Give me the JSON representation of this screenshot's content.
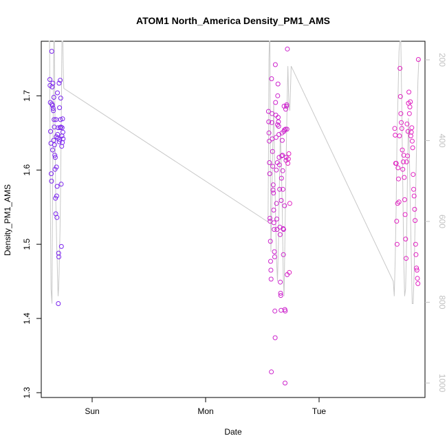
{
  "chart_data": {
    "type": "scatter",
    "title": "ATOM1 North_America Density_PM1_AMS",
    "xlabel": "Date",
    "ylabel": "Density_PM1_AMS",
    "x_ticks": [
      "Sun",
      "Mon",
      "Tue"
    ],
    "y_ticks": [
      "1.3",
      "1.4",
      "1.5",
      "1.6",
      "1.7"
    ],
    "y_ticks_right": [
      "200",
      "400",
      "600",
      "800",
      "1000"
    ],
    "xlim_days": [
      -0.4,
      2.93
    ],
    "ylim": [
      1.3,
      1.78
    ],
    "ylim_right": [
      1000,
      172
    ],
    "grid": false,
    "colors": {
      "cluster1": "#7a22ee",
      "cluster2": "#cc22cc",
      "cluster3": "#e020c0",
      "line": "#c8c8c8",
      "frame": "#000000",
      "right_axis": "#c0c0c0"
    },
    "series": [
      {
        "type": "scatter",
        "x_hours": [
          -8.95,
          -8.9,
          -8.85,
          -8.8,
          -8.72,
          -8.65,
          -8.6,
          -8.55,
          -8.5,
          -8.45,
          -8.4,
          -8.35,
          -8.3,
          -8.25,
          -8.2,
          -8.15,
          -8.1,
          -8.05,
          -8.0,
          -7.95,
          -7.9,
          -7.85,
          -7.8,
          -7.75,
          -7.7,
          -7.65,
          -7.6,
          -7.55,
          -7.5,
          -7.45,
          -7.4,
          -7.35,
          -7.3,
          -7.25,
          -7.2,
          -7.15,
          -7.1,
          -7.05,
          -7.0,
          -6.95,
          -6.9,
          -6.85,
          -6.8,
          -6.75,
          -6.7,
          -6.65,
          -6.6,
          -6.55,
          -6.5,
          -6.45,
          -6.4,
          -6.35,
          -6.3,
          -6.25,
          -6.2,
          -6.15
        ],
        "values": [
          1.722,
          1.714,
          1.691,
          1.652,
          1.636,
          1.595,
          1.585,
          1.76,
          1.689,
          1.712,
          1.687,
          1.627,
          1.717,
          1.683,
          1.68,
          1.64,
          1.698,
          1.668,
          1.658,
          1.634,
          1.62,
          1.601,
          1.617,
          1.562,
          1.541,
          1.668,
          1.645,
          1.604,
          1.565,
          1.536,
          1.578,
          1.704,
          1.648,
          1.643,
          1.657,
          1.42,
          1.488,
          1.483,
          1.717,
          1.638,
          1.684,
          1.641,
          1.657,
          1.721,
          1.668,
          1.697,
          1.658,
          1.581,
          1.497,
          1.632,
          1.646,
          1.657,
          1.637,
          1.669,
          1.651,
          1.642
        ]
      },
      {
        "type": "scatter",
        "x_hours": [
          37.3,
          37.35,
          37.4,
          37.45,
          37.5,
          37.55,
          37.6,
          37.65,
          37.7,
          37.75,
          37.8,
          37.85,
          37.9,
          37.95,
          38.0,
          38.05,
          38.1,
          38.15,
          38.2,
          38.25,
          38.3,
          38.35,
          38.4,
          38.45,
          38.5,
          38.55,
          38.6,
          38.65,
          38.7,
          38.75,
          38.8,
          38.85,
          38.9,
          38.95,
          39.0,
          39.05,
          39.1,
          39.15,
          39.2,
          39.25,
          39.3,
          39.35,
          39.4,
          39.45,
          39.5,
          39.55,
          39.6,
          39.65,
          39.7,
          39.75,
          39.8,
          39.85,
          39.9,
          39.95,
          40.0,
          40.05,
          40.1,
          40.15,
          40.2,
          40.25,
          40.3,
          40.35,
          40.4,
          40.45,
          40.5,
          40.55,
          40.6,
          40.65,
          40.7,
          40.75,
          40.8,
          40.85,
          40.9,
          40.95,
          41.0,
          41.05,
          41.1,
          41.15,
          41.2,
          41.25,
          41.3
        ],
        "values": [
          1.679,
          1.665,
          1.65,
          1.639,
          1.61,
          1.595,
          1.535,
          1.531,
          1.504,
          1.477,
          1.465,
          1.453,
          1.328,
          1.723,
          1.664,
          1.676,
          1.642,
          1.625,
          1.605,
          1.573,
          1.58,
          1.569,
          1.546,
          1.529,
          1.52,
          1.49,
          1.483,
          1.41,
          1.374,
          1.742,
          1.691,
          1.674,
          1.644,
          1.6,
          1.555,
          1.534,
          1.52,
          1.61,
          1.661,
          1.7,
          1.716,
          1.671,
          1.665,
          1.659,
          1.648,
          1.617,
          1.607,
          1.574,
          1.523,
          1.513,
          1.449,
          1.434,
          1.431,
          1.411,
          1.559,
          1.589,
          1.619,
          1.65,
          1.64,
          1.62,
          1.599,
          1.574,
          1.521,
          1.486,
          1.52,
          1.652,
          1.686,
          1.654,
          1.552,
          1.412,
          1.313,
          1.41,
          1.655,
          1.682,
          1.613,
          1.617,
          1.686,
          1.688,
          1.655,
          1.459,
          1.763
        ]
      },
      {
        "type": "scatter",
        "x_hours": [
          41.4,
          41.5,
          41.6,
          41.7,
          41.8,
          64.0,
          64.1,
          64.2,
          64.3,
          64.4,
          64.5,
          64.6,
          64.7,
          64.8,
          64.9,
          65.0,
          65.1,
          65.2,
          65.3,
          65.4,
          65.5,
          65.6,
          65.7,
          65.8,
          65.9,
          66.0,
          66.1,
          66.2,
          66.3,
          66.4,
          66.5,
          66.6,
          66.7,
          66.8,
          66.9,
          67.0,
          67.1,
          67.2,
          67.3,
          67.4,
          67.5,
          67.6,
          67.7,
          67.8,
          67.9,
          68.0,
          68.1,
          68.2,
          68.3,
          68.4,
          68.5,
          68.6,
          68.7,
          68.8,
          68.9,
          69.0
        ],
        "values": [
          1.609,
          1.615,
          1.622,
          1.462,
          1.555,
          1.656,
          1.647,
          1.609,
          1.609,
          1.531,
          1.5,
          1.555,
          1.603,
          1.588,
          1.557,
          1.646,
          1.737,
          1.699,
          1.676,
          1.664,
          1.656,
          1.627,
          1.601,
          1.611,
          1.62,
          1.59,
          1.56,
          1.54,
          1.507,
          1.481,
          1.611,
          1.662,
          1.619,
          1.652,
          1.69,
          1.705,
          1.676,
          1.685,
          1.692,
          1.646,
          1.651,
          1.657,
          1.639,
          1.63,
          1.594,
          1.574,
          1.565,
          1.547,
          1.532,
          1.5,
          1.486,
          1.468,
          1.465,
          1.454,
          1.447,
          1.749
        ]
      }
    ],
    "line_series": {
      "type": "line",
      "x_hours": [
        -9.2,
        -9.1,
        -9.0,
        -8.9,
        -8.8,
        -8.7,
        -8.6,
        -8.5,
        -8.4,
        -8.3,
        -8.2,
        -8.1,
        -8.0,
        -7.9,
        -7.8,
        -7.7,
        -7.6,
        -7.5,
        -7.4,
        -7.3,
        -7.2,
        -7.1,
        -7.0,
        -6.9,
        -6.8,
        -6.7,
        -6.6,
        -6.5,
        -6.4,
        -6.3,
        -6.2,
        -6.1,
        -6.0,
        37.2,
        37.3,
        37.4,
        37.5,
        37.6,
        37.7,
        37.8,
        37.9,
        38.0,
        38.2,
        38.4,
        38.6,
        38.8,
        39.0,
        39.2,
        39.4,
        39.6,
        39.8,
        40.0,
        40.2,
        40.4,
        40.6,
        40.8,
        41.0,
        41.2,
        41.4,
        41.6,
        41.8,
        42.0,
        42.1,
        63.7,
        63.9,
        64.1,
        64.3,
        64.5,
        64.7,
        64.9,
        65.1,
        65.3,
        65.5,
        65.7,
        65.9,
        66.1,
        66.3,
        66.5,
        66.7,
        66.9,
        67.1,
        67.3,
        67.5,
        67.7,
        67.9,
        68.1,
        68.3,
        68.5,
        68.7,
        68.9,
        69.1
      ],
      "values": [
        1.78,
        1.78,
        1.78,
        1.64,
        1.52,
        1.44,
        1.43,
        1.42,
        1.54,
        1.63,
        1.7,
        1.78,
        1.78,
        1.7,
        1.62,
        1.56,
        1.53,
        1.5,
        1.48,
        1.45,
        1.43,
        1.44,
        1.46,
        1.49,
        1.52,
        1.56,
        1.62,
        1.69,
        1.78,
        1.78,
        1.78,
        1.73,
        1.71,
        1.53,
        1.62,
        1.75,
        1.78,
        1.78,
        1.6,
        1.49,
        1.52,
        1.56,
        1.63,
        1.69,
        1.6,
        1.54,
        1.48,
        1.45,
        1.5,
        1.58,
        1.65,
        1.61,
        1.55,
        1.46,
        1.43,
        1.52,
        1.6,
        1.68,
        1.74,
        1.69,
        1.68,
        1.72,
        1.74,
        1.45,
        1.43,
        1.48,
        1.55,
        1.65,
        1.7,
        1.76,
        1.78,
        1.78,
        1.68,
        1.58,
        1.48,
        1.43,
        1.44,
        1.5,
        1.6,
        1.67,
        1.62,
        1.55,
        1.48,
        1.42,
        1.42,
        1.46,
        1.53,
        1.59,
        1.66,
        1.72,
        1.75
      ]
    }
  }
}
